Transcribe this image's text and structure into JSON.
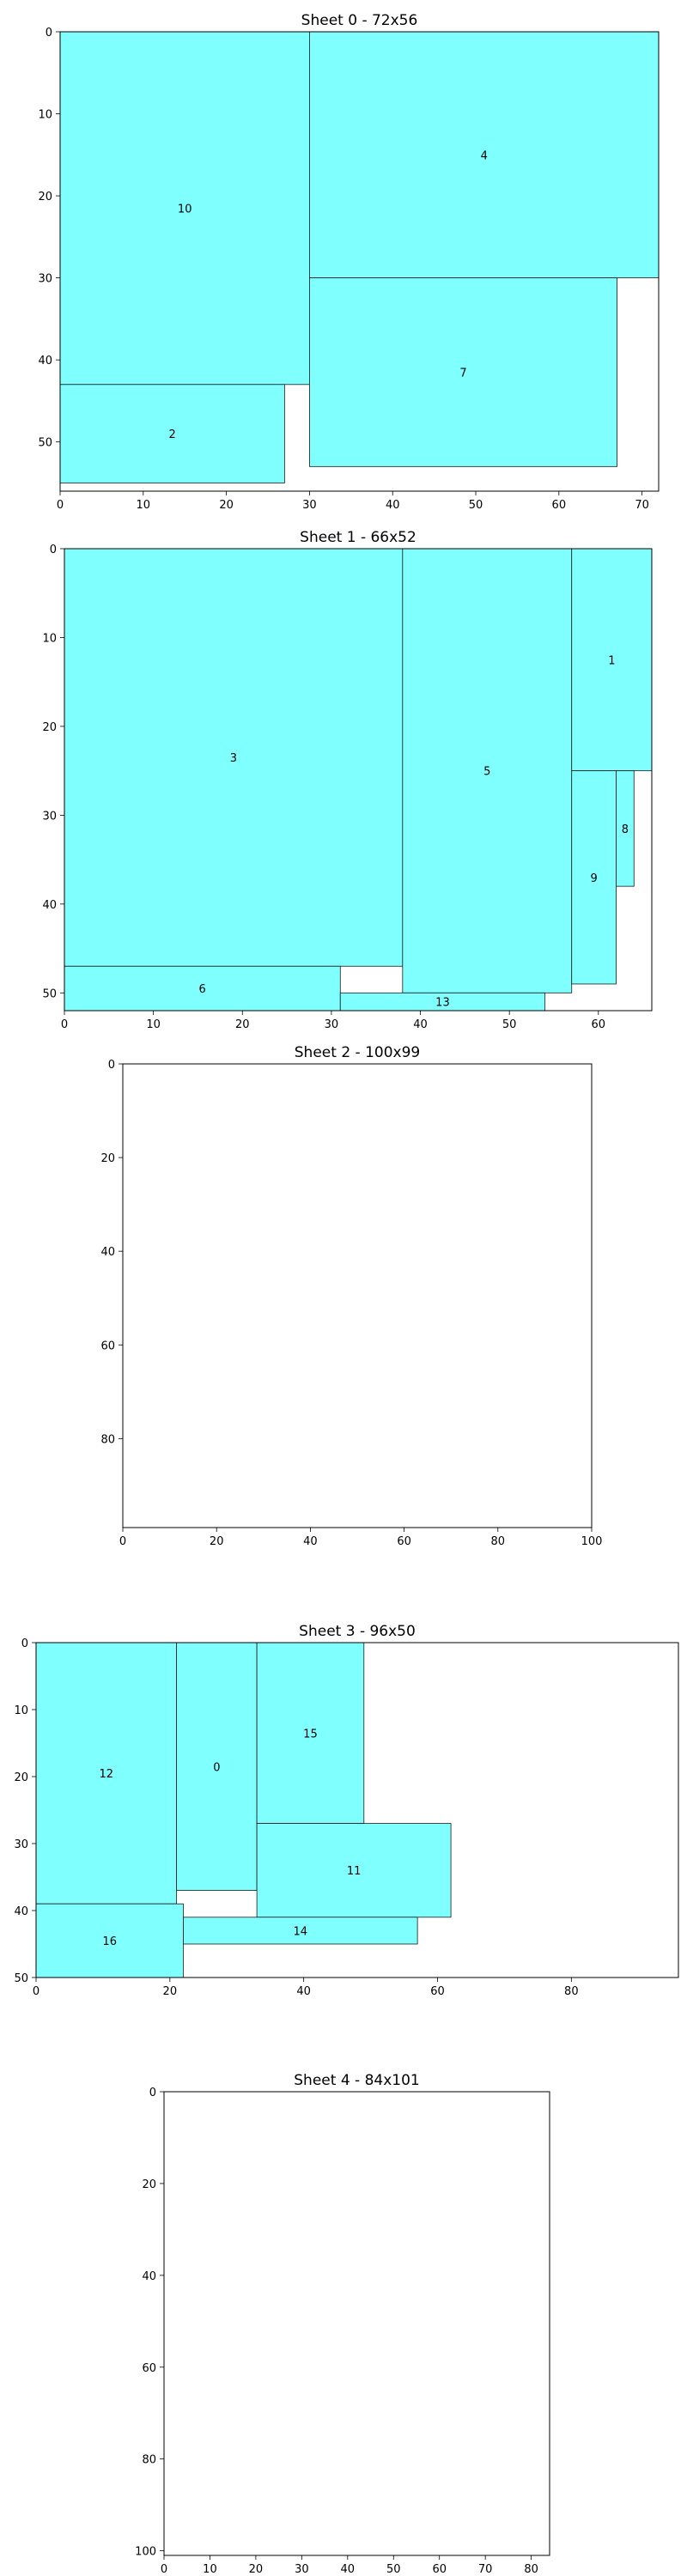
{
  "chart_data": {
    "type": "rect-packing",
    "piece_color": "#80ffff",
    "sheets": [
      {
        "title": "Sheet 0 - 72x56",
        "width": 72,
        "height": 56,
        "xticks": [
          0,
          10,
          20,
          30,
          40,
          50,
          60,
          70
        ],
        "yticks": [
          0,
          10,
          20,
          30,
          40,
          50
        ],
        "pieces": [
          {
            "id": "10",
            "x": 0,
            "y": 0,
            "w": 30,
            "h": 43
          },
          {
            "id": "4",
            "x": 30,
            "y": 0,
            "w": 42,
            "h": 30
          },
          {
            "id": "7",
            "x": 30,
            "y": 30,
            "w": 37,
            "h": 23
          },
          {
            "id": "2",
            "x": 0,
            "y": 43,
            "w": 27,
            "h": 12
          }
        ]
      },
      {
        "title": "Sheet 1 - 66x52",
        "width": 66,
        "height": 52,
        "xticks": [
          0,
          10,
          20,
          30,
          40,
          50,
          60
        ],
        "yticks": [
          0,
          10,
          20,
          30,
          40,
          50
        ],
        "pieces": [
          {
            "id": "3",
            "x": 0,
            "y": 0,
            "w": 38,
            "h": 47
          },
          {
            "id": "5",
            "x": 38,
            "y": 0,
            "w": 19,
            "h": 50
          },
          {
            "id": "1",
            "x": 57,
            "y": 0,
            "w": 9,
            "h": 25
          },
          {
            "id": "9",
            "x": 57,
            "y": 25,
            "w": 5,
            "h": 24
          },
          {
            "id": "8",
            "x": 62,
            "y": 25,
            "w": 2,
            "h": 13
          },
          {
            "id": "6",
            "x": 0,
            "y": 47,
            "w": 31,
            "h": 5
          },
          {
            "id": "13",
            "x": 31,
            "y": 50,
            "w": 23,
            "h": 2
          }
        ]
      },
      {
        "title": "Sheet 2 - 100x99",
        "width": 100,
        "height": 99,
        "xticks": [
          0,
          20,
          40,
          60,
          80,
          100
        ],
        "yticks": [
          0,
          20,
          40,
          60,
          80
        ],
        "pieces": []
      },
      {
        "title": "Sheet 3 - 96x50",
        "width": 96,
        "height": 50,
        "xticks": [
          0,
          20,
          40,
          60,
          80
        ],
        "yticks": [
          0,
          10,
          20,
          30,
          40,
          50
        ],
        "pieces": [
          {
            "id": "12",
            "x": 0,
            "y": 0,
            "w": 21,
            "h": 39
          },
          {
            "id": "0",
            "x": 21,
            "y": 0,
            "w": 12,
            "h": 37
          },
          {
            "id": "15",
            "x": 33,
            "y": 0,
            "w": 16,
            "h": 27
          },
          {
            "id": "11",
            "x": 33,
            "y": 27,
            "w": 29,
            "h": 14
          },
          {
            "id": "14",
            "x": 22,
            "y": 41,
            "w": 35,
            "h": 4
          },
          {
            "id": "16",
            "x": 0,
            "y": 39,
            "w": 22,
            "h": 11
          }
        ]
      },
      {
        "title": "Sheet 4 - 84x101",
        "width": 84,
        "height": 101,
        "xticks": [
          0,
          10,
          20,
          30,
          40,
          50,
          60,
          70,
          80
        ],
        "yticks": [
          0,
          20,
          40,
          60,
          80,
          100
        ],
        "pieces": []
      }
    ]
  }
}
